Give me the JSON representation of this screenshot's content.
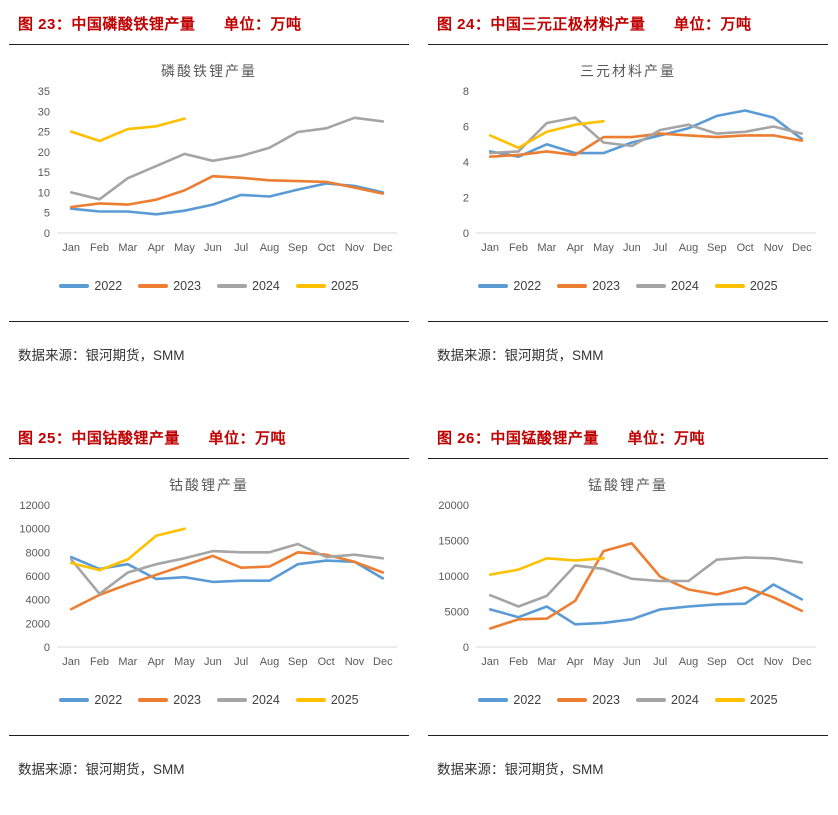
{
  "page": {
    "background": "#ffffff"
  },
  "styles": {
    "caption_color": "#C00000",
    "chart_title_color": "#595959",
    "axis_text_color": "#595959",
    "legend_text_color": "#404040",
    "axis_line_color": "#D9D9D9",
    "rule_color": "#1f1f1f"
  },
  "chart_data": [
    {
      "type": "line",
      "figure_caption": "图 23：中国磷酸铁锂产量",
      "unit_label": "单位：万吨",
      "title": "磷酸铁锂产量",
      "source_note": "数据来源：银河期货，SMM",
      "categories": [
        "Jan",
        "Feb",
        "Mar",
        "Apr",
        "May",
        "Jun",
        "Jul",
        "Aug",
        "Sep",
        "Oct",
        "Nov",
        "Dec"
      ],
      "ylim": [
        0,
        35
      ],
      "yticks": [
        0,
        5,
        10,
        15,
        20,
        25,
        30,
        35
      ],
      "grid": false,
      "legend_position": "bottom",
      "series": [
        {
          "name": "2022",
          "color": "#5B9BD5",
          "values": [
            6,
            5.3,
            5.3,
            4.6,
            5.5,
            7,
            9.4,
            9,
            10.7,
            12.2,
            11.6,
            10
          ]
        },
        {
          "name": "2023",
          "color": "#ED7D31",
          "values": [
            6.4,
            7.3,
            7,
            8.2,
            10.5,
            14,
            13.6,
            13,
            12.8,
            12.6,
            11.2,
            9.7
          ]
        },
        {
          "name": "2024",
          "color": "#A5A5A5",
          "values": [
            10,
            8.3,
            13.5,
            16.5,
            19.5,
            17.8,
            19,
            21,
            24.9,
            25.8,
            28.4,
            27.5
          ]
        },
        {
          "name": "2025",
          "color": "#FFC000",
          "values": [
            25,
            22.7,
            25.6,
            26.3,
            28.2
          ]
        }
      ]
    },
    {
      "type": "line",
      "figure_caption": "图 24：中国三元正极材料产量",
      "unit_label": "单位：万吨",
      "title": "三元材料产量",
      "source_note": "数据来源：银河期货，SMM",
      "categories": [
        "Jan",
        "Feb",
        "Mar",
        "Apr",
        "May",
        "Jun",
        "Jul",
        "Aug",
        "Sep",
        "Oct",
        "Nov",
        "Dec"
      ],
      "ylim": [
        0,
        8
      ],
      "yticks": [
        0,
        2,
        4,
        6,
        8
      ],
      "grid": false,
      "legend_position": "bottom",
      "series": [
        {
          "name": "2022",
          "color": "#5B9BD5",
          "values": [
            4.6,
            4.3,
            5.0,
            4.5,
            4.5,
            5.1,
            5.5,
            5.9,
            6.6,
            6.9,
            6.5,
            5.3
          ]
        },
        {
          "name": "2023",
          "color": "#ED7D31",
          "values": [
            4.3,
            4.4,
            4.6,
            4.4,
            5.4,
            5.4,
            5.6,
            5.5,
            5.4,
            5.5,
            5.5,
            5.2
          ]
        },
        {
          "name": "2024",
          "color": "#A5A5A5",
          "values": [
            4.5,
            4.6,
            6.2,
            6.5,
            5.1,
            4.9,
            5.8,
            6.1,
            5.6,
            5.7,
            6.0,
            5.6
          ]
        },
        {
          "name": "2025",
          "color": "#FFC000",
          "values": [
            5.5,
            4.8,
            5.7,
            6.1,
            6.3
          ]
        }
      ]
    },
    {
      "type": "line",
      "figure_caption": "图 25：中国钴酸锂产量",
      "unit_label": "单位：万吨",
      "title": "钴酸锂产量",
      "source_note": "数据来源：银河期货，SMM",
      "categories": [
        "Jan",
        "Feb",
        "Mar",
        "Apr",
        "May",
        "Jun",
        "Jul",
        "Aug",
        "Sep",
        "Oct",
        "Nov",
        "Dec"
      ],
      "ylim": [
        0,
        12000
      ],
      "yticks": [
        0,
        2000,
        4000,
        6000,
        8000,
        10000,
        12000
      ],
      "grid": false,
      "legend_position": "bottom",
      "series": [
        {
          "name": "2022",
          "color": "#5B9BD5",
          "values": [
            7600,
            6600,
            7000,
            5750,
            5900,
            5500,
            5600,
            5600,
            7000,
            7300,
            7200,
            5800
          ]
        },
        {
          "name": "2023",
          "color": "#ED7D31",
          "values": [
            3200,
            4400,
            5300,
            6100,
            6900,
            7700,
            6700,
            6800,
            8000,
            7800,
            7200,
            6300
          ]
        },
        {
          "name": "2024",
          "color": "#A5A5A5",
          "values": [
            7400,
            4500,
            6300,
            7000,
            7500,
            8100,
            8000,
            8000,
            8700,
            7600,
            7800,
            7500
          ]
        },
        {
          "name": "2025",
          "color": "#FFC000",
          "values": [
            7100,
            6500,
            7400,
            9400,
            10000
          ]
        }
      ]
    },
    {
      "type": "line",
      "figure_caption": "图 26：中国锰酸锂产量",
      "unit_label": "单位：万吨",
      "title": "锰酸锂产量",
      "source_note": "数据来源：银河期货，SMM",
      "categories": [
        "Jan",
        "Feb",
        "Mar",
        "Apr",
        "May",
        "Jun",
        "Jul",
        "Aug",
        "Sep",
        "Oct",
        "Nov",
        "Dec"
      ],
      "ylim": [
        0,
        20000
      ],
      "yticks": [
        0,
        5000,
        10000,
        15000,
        20000
      ],
      "grid": false,
      "legend_position": "bottom",
      "series": [
        {
          "name": "2022",
          "color": "#5B9BD5",
          "values": [
            5300,
            4200,
            5700,
            3200,
            3400,
            3900,
            5300,
            5700,
            6000,
            6100,
            8800,
            6700
          ]
        },
        {
          "name": "2023",
          "color": "#ED7D31",
          "values": [
            2600,
            3900,
            4000,
            6500,
            13500,
            14600,
            9900,
            8100,
            7400,
            8400,
            7000,
            5100
          ]
        },
        {
          "name": "2024",
          "color": "#A5A5A5",
          "values": [
            7300,
            5700,
            7200,
            11500,
            11000,
            9600,
            9300,
            9300,
            12300,
            12600,
            12500,
            11900
          ]
        },
        {
          "name": "2025",
          "color": "#FFC000",
          "values": [
            10200,
            10900,
            12500,
            12200,
            12500
          ]
        }
      ]
    }
  ]
}
